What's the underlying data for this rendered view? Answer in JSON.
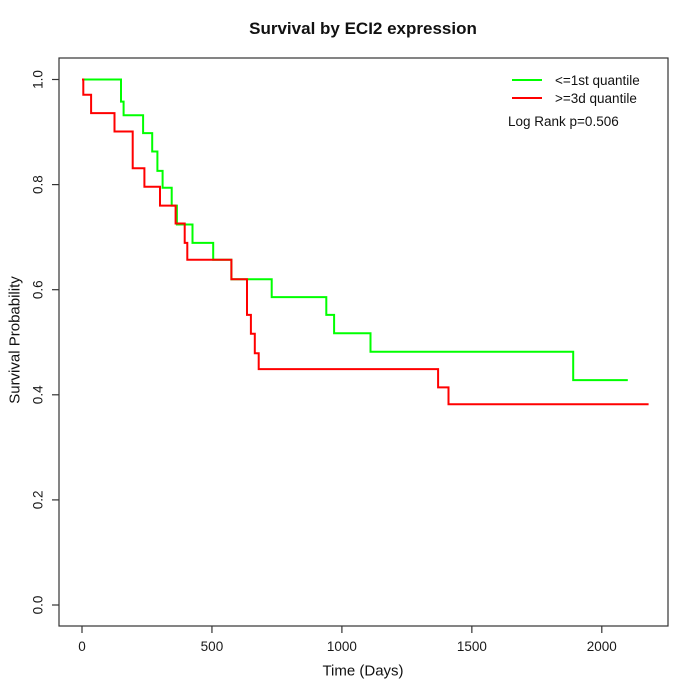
{
  "chart_data": {
    "type": "line",
    "subtype": "kaplan_meier_step",
    "title": "Survival by ECI2 expression",
    "xlabel": "Time (Days)",
    "ylabel": "Survival Probability",
    "xlim": [
      0,
      2200
    ],
    "ylim": [
      0.0,
      1.0
    ],
    "grid": false,
    "legend_position": "top-right",
    "annotation": "Log Rank p=0.506",
    "x_ticks": {
      "values": [
        0,
        500,
        1000,
        1500,
        2000
      ],
      "labels": [
        "0",
        "500",
        "1000",
        "1500",
        "2000"
      ]
    },
    "y_ticks": {
      "values": [
        0.0,
        0.2,
        0.4,
        0.6,
        0.8,
        1.0
      ],
      "labels": [
        "0.0",
        "0.2",
        "0.4",
        "0.6",
        "0.8",
        "1.0"
      ]
    },
    "series": [
      {
        "id": "low-expression",
        "name": "<=1st quantile",
        "color": "#00ff00",
        "end_time": 2100,
        "steps": [
          [
            0,
            1.0
          ],
          [
            150,
            0.958
          ],
          [
            160,
            0.932
          ],
          [
            235,
            0.898
          ],
          [
            270,
            0.863
          ],
          [
            290,
            0.826
          ],
          [
            310,
            0.794
          ],
          [
            345,
            0.76
          ],
          [
            365,
            0.724
          ],
          [
            425,
            0.689
          ],
          [
            505,
            0.657
          ],
          [
            575,
            0.62
          ],
          [
            730,
            0.586
          ],
          [
            940,
            0.552
          ],
          [
            970,
            0.517
          ],
          [
            1110,
            0.482
          ],
          [
            1890,
            0.428
          ]
        ]
      },
      {
        "id": "high-expression",
        "name": ">=3d quantile",
        "color": "#ff0000",
        "end_time": 2180,
        "steps": [
          [
            0,
            1.0
          ],
          [
            5,
            0.971
          ],
          [
            35,
            0.936
          ],
          [
            125,
            0.901
          ],
          [
            195,
            0.831
          ],
          [
            240,
            0.796
          ],
          [
            300,
            0.76
          ],
          [
            360,
            0.726
          ],
          [
            395,
            0.689
          ],
          [
            405,
            0.657
          ],
          [
            575,
            0.62
          ],
          [
            635,
            0.552
          ],
          [
            650,
            0.516
          ],
          [
            665,
            0.479
          ],
          [
            680,
            0.449
          ],
          [
            1370,
            0.414
          ],
          [
            1410,
            0.382
          ]
        ]
      }
    ]
  },
  "style": {
    "axis_color": "#333333",
    "text_color": "#1a1a1a",
    "line_width": 2
  }
}
